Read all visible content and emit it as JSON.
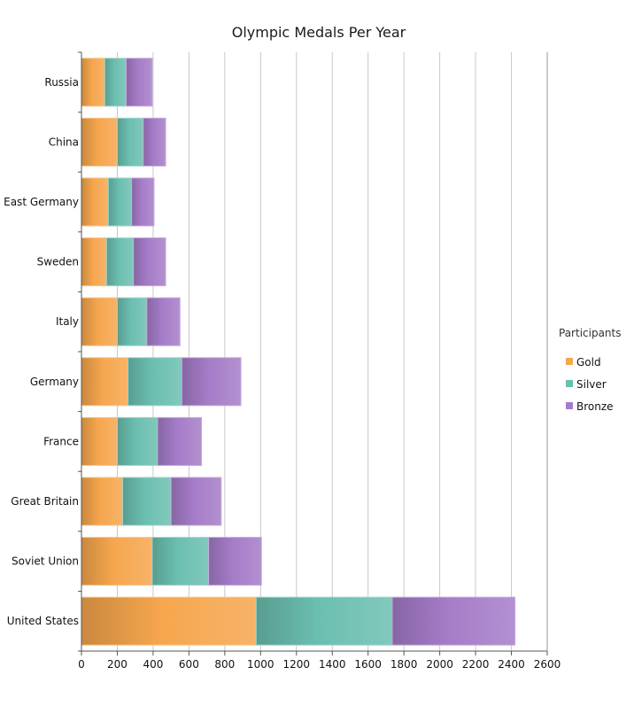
{
  "chart_data": {
    "type": "bar",
    "orientation": "horizontal",
    "stacked": true,
    "title": "Olympic Medals Per Year",
    "categories": [
      "Russia",
      "China",
      "East Germany",
      "Sweden",
      "Italy",
      "Germany",
      "France",
      "Great Britain",
      "Soviet Union",
      "United States"
    ],
    "series": [
      {
        "name": "Gold",
        "color": "#F6A64D",
        "values": [
          130,
          200,
          150,
          140,
          200,
          260,
          200,
          230,
          395,
          975
        ]
      },
      {
        "name": "Silver",
        "color": "#6BBFB0",
        "values": [
          120,
          145,
          130,
          150,
          165,
          300,
          225,
          270,
          315,
          760
        ]
      },
      {
        "name": "Bronze",
        "color": "#A57CC8",
        "values": [
          145,
          125,
          125,
          180,
          185,
          330,
          245,
          280,
          295,
          685
        ]
      }
    ],
    "xlim": [
      0,
      2600
    ],
    "xticks": [
      "0",
      "200",
      "400",
      "600",
      "800",
      "1000",
      "1200",
      "1400",
      "1600",
      "1800",
      "2000",
      "2200",
      "2400",
      "2600"
    ],
    "grid": true,
    "legend": {
      "title": "Participants",
      "position": "right"
    }
  }
}
